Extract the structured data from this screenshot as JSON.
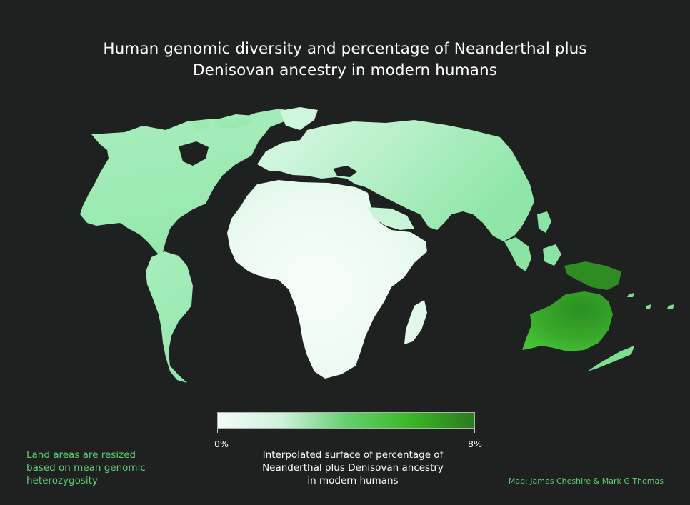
{
  "title": {
    "line1": "Human genomic diversity and percentage of Neanderthal plus",
    "line2": "Denisovan ancestry in modern humans"
  },
  "legend": {
    "min_label": "0%",
    "max_label": "8%",
    "range_percent": [
      0,
      8
    ],
    "colors": [
      "#f4fbf7",
      "#ccf3da",
      "#66d06f",
      "#3ab727",
      "#2b7a1c"
    ],
    "caption": [
      "Interpolated surface of percentage of",
      "Neanderthal plus Denisovan ancestry",
      "in modern humans"
    ]
  },
  "note": [
    "Land areas are resized",
    "based on mean genomic",
    "heterozygosity"
  ],
  "credit": "Map: James Cheshire & Mark G Thomas",
  "colors": {
    "background": "#1f2120",
    "accent_text": "#5ecf74",
    "land_low": "#f0fbf4",
    "land_mid": "#9fe9b6",
    "land_high": "#34a328"
  }
}
